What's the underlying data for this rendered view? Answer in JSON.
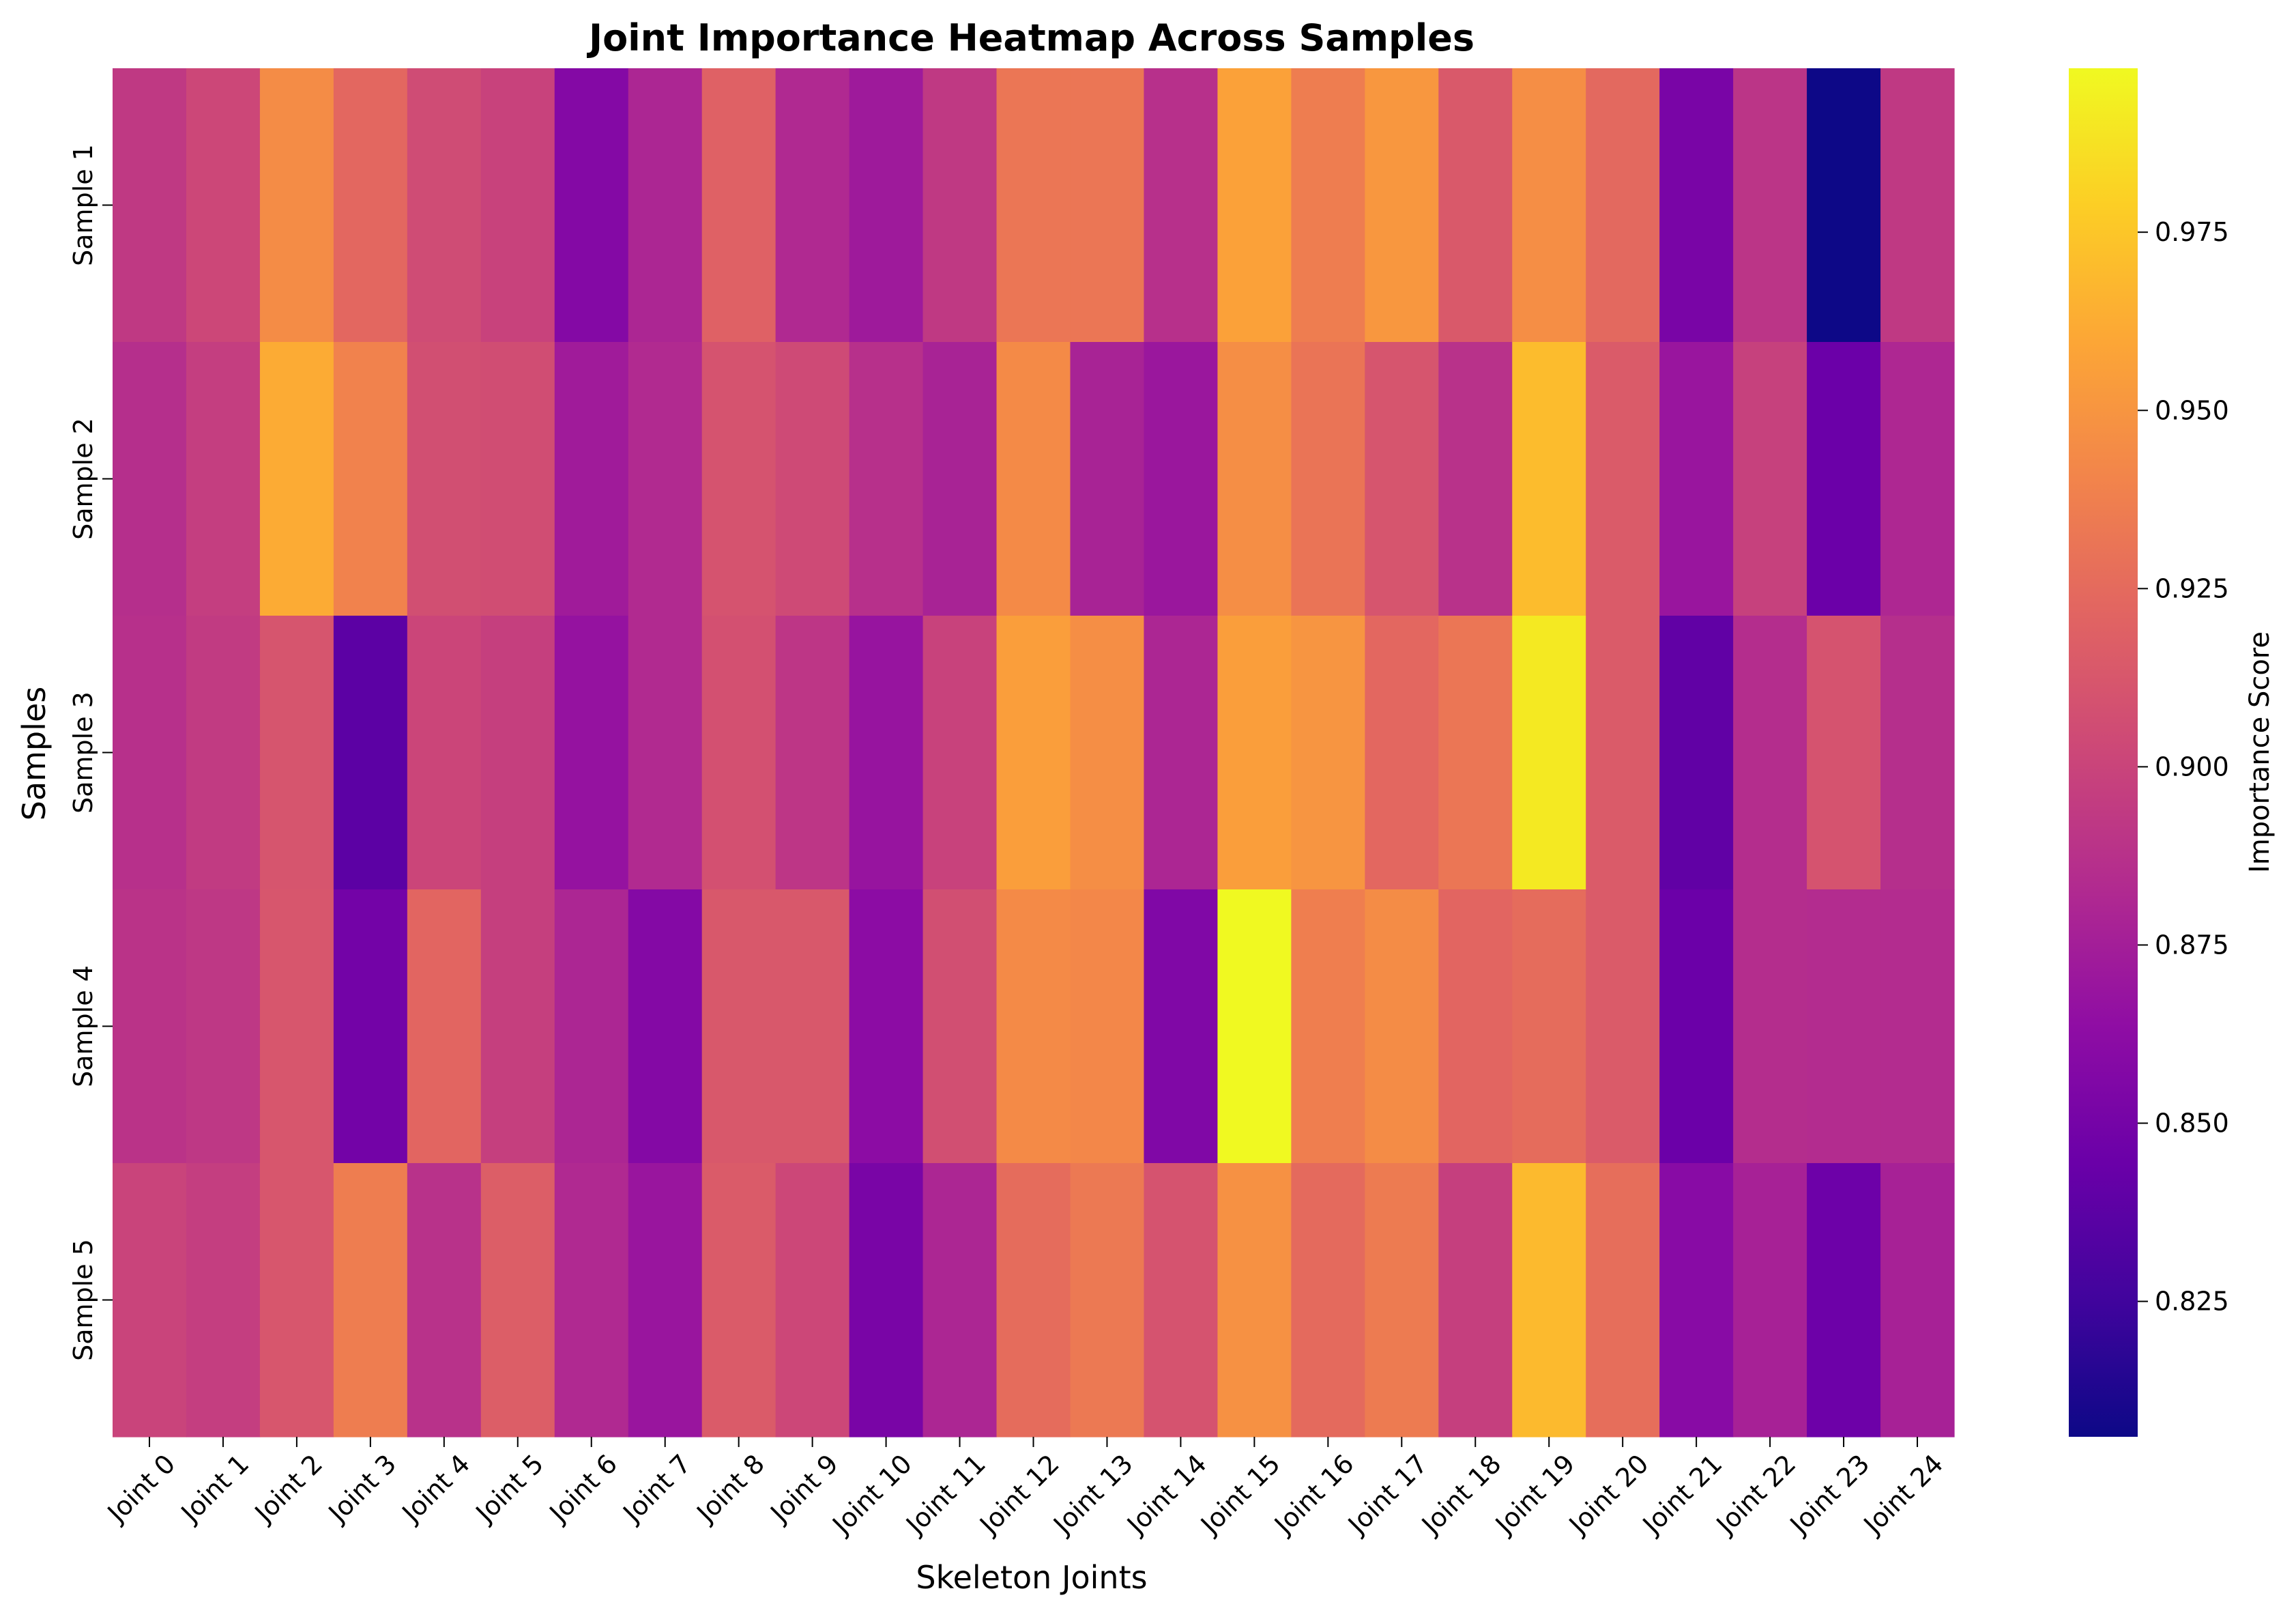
{
  "chart_data": {
    "type": "heatmap",
    "title": "Joint Importance Heatmap Across Samples",
    "xlabel": "Skeleton Joints",
    "ylabel": "Samples",
    "colorbar_label": "Importance Score",
    "colormap": "plasma",
    "vmin": 0.806,
    "vmax": 0.998,
    "colorbar_ticks": [
      "0.825",
      "0.850",
      "0.875",
      "0.900",
      "0.925",
      "0.950",
      "0.975"
    ],
    "colorbar_tick_values": [
      0.825,
      0.85,
      0.875,
      0.9,
      0.925,
      0.95,
      0.975
    ],
    "x_categories": [
      "Joint 0",
      "Joint 1",
      "Joint 2",
      "Joint 3",
      "Joint 4",
      "Joint 5",
      "Joint 6",
      "Joint 7",
      "Joint 8",
      "Joint 9",
      "Joint 10",
      "Joint 11",
      "Joint 12",
      "Joint 13",
      "Joint 14",
      "Joint 15",
      "Joint 16",
      "Joint 17",
      "Joint 18",
      "Joint 19",
      "Joint 20",
      "Joint 21",
      "Joint 22",
      "Joint 23",
      "Joint 24"
    ],
    "y_categories": [
      "Sample 1",
      "Sample 2",
      "Sample 3",
      "Sample 4",
      "Sample 5"
    ],
    "values": [
      [
        0.893,
        0.902,
        0.945,
        0.923,
        0.905,
        0.899,
        0.858,
        0.88,
        0.919,
        0.882,
        0.872,
        0.893,
        0.932,
        0.932,
        0.887,
        0.957,
        0.936,
        0.951,
        0.914,
        0.946,
        0.924,
        0.852,
        0.89,
        0.806,
        0.893
      ],
      [
        0.886,
        0.896,
        0.962,
        0.939,
        0.907,
        0.906,
        0.873,
        0.883,
        0.91,
        0.904,
        0.887,
        0.878,
        0.944,
        0.878,
        0.87,
        0.946,
        0.931,
        0.911,
        0.888,
        0.97,
        0.915,
        0.869,
        0.898,
        0.845,
        0.881
      ],
      [
        0.887,
        0.894,
        0.911,
        0.838,
        0.901,
        0.897,
        0.867,
        0.883,
        0.908,
        0.891,
        0.868,
        0.899,
        0.955,
        0.946,
        0.88,
        0.955,
        0.95,
        0.923,
        0.932,
        0.991,
        0.915,
        0.84,
        0.885,
        0.91,
        0.886
      ],
      [
        0.889,
        0.892,
        0.912,
        0.849,
        0.922,
        0.897,
        0.88,
        0.858,
        0.913,
        0.913,
        0.862,
        0.907,
        0.944,
        0.942,
        0.856,
        0.998,
        0.937,
        0.945,
        0.922,
        0.926,
        0.915,
        0.845,
        0.885,
        0.884,
        0.884
      ],
      [
        0.9,
        0.896,
        0.912,
        0.936,
        0.888,
        0.917,
        0.882,
        0.869,
        0.915,
        0.902,
        0.852,
        0.88,
        0.926,
        0.934,
        0.91,
        0.948,
        0.925,
        0.935,
        0.897,
        0.969,
        0.927,
        0.86,
        0.877,
        0.846,
        0.877
      ]
    ]
  }
}
